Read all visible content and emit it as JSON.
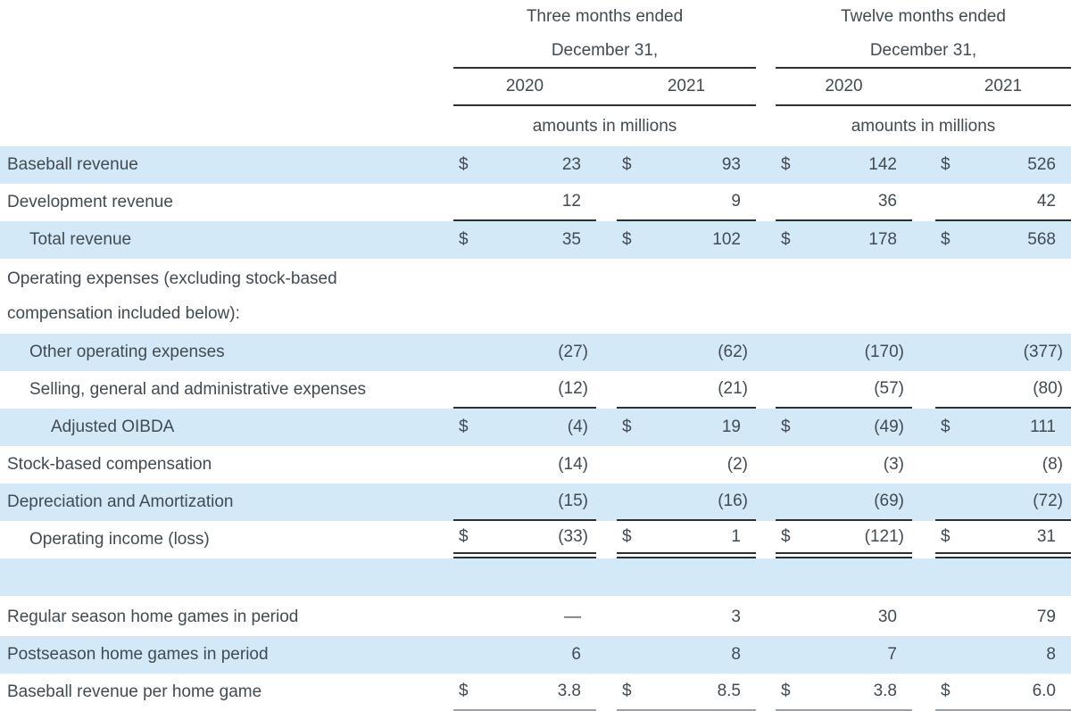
{
  "table": {
    "currency_symbol": "$",
    "col_groups": [
      {
        "line1": "Three months ended",
        "line2": "December 31,",
        "years": [
          "2020",
          "2021"
        ],
        "units": "amounts in millions"
      },
      {
        "line1": "Twelve months ended",
        "line2": "December 31,",
        "years": [
          "2020",
          "2021"
        ],
        "units": "amounts in millions"
      }
    ],
    "rows": [
      {
        "label": "Baseball revenue",
        "indent": 0,
        "bg": "blue",
        "dollar": true,
        "values": [
          "23",
          "93",
          "142",
          "526"
        ]
      },
      {
        "label": "Development revenue",
        "indent": 0,
        "bg": "white",
        "dollar": false,
        "values": [
          "12",
          "9",
          "36",
          "42"
        ],
        "underline": "single"
      },
      {
        "label": "Total revenue",
        "indent": 1,
        "bg": "blue",
        "dollar": true,
        "values": [
          "35",
          "102",
          "178",
          "568"
        ]
      },
      {
        "label": "Operating expenses (excluding stock-based compensation included below):",
        "indent": 0,
        "bg": "white",
        "dollar": false,
        "values": [
          "",
          "",
          "",
          ""
        ],
        "height": 84,
        "wrap": true
      },
      {
        "label": "Other operating expenses",
        "indent": 1,
        "bg": "blue",
        "dollar": false,
        "values": [
          "(27)",
          "(62)",
          "(170)",
          "(377)"
        ]
      },
      {
        "label": "Selling, general and administrative expenses",
        "indent": 1,
        "bg": "white",
        "dollar": false,
        "values": [
          "(12)",
          "(21)",
          "(57)",
          "(80)"
        ],
        "underline": "single"
      },
      {
        "label": "Adjusted OIBDA",
        "indent": 2,
        "bg": "blue",
        "dollar": true,
        "values": [
          "(4)",
          "19",
          "(49)",
          "111"
        ]
      },
      {
        "label": "Stock-based compensation",
        "indent": 0,
        "bg": "white",
        "dollar": false,
        "values": [
          "(14)",
          "(2)",
          "(3)",
          "(8)"
        ]
      },
      {
        "label": "Depreciation and Amortization",
        "indent": 0,
        "bg": "blue",
        "dollar": false,
        "values": [
          "(15)",
          "(16)",
          "(69)",
          "(72)"
        ],
        "underline": "single"
      },
      {
        "label": "Operating income (loss)",
        "indent": 1,
        "bg": "white",
        "dollar": true,
        "values": [
          "(33)",
          "1",
          "(121)",
          "31"
        ],
        "underline": "double"
      },
      {
        "label": "",
        "indent": 0,
        "bg": "blue",
        "dollar": false,
        "values": [
          "",
          "",
          "",
          ""
        ]
      },
      {
        "label": "",
        "indent": 0,
        "bg": "white",
        "dollar": false,
        "values": [],
        "height": 3,
        "spacer": true
      },
      {
        "label": "Regular season home games in period",
        "indent": 0,
        "bg": "white",
        "dollar": false,
        "values": [
          "—",
          "3",
          "30",
          "79"
        ]
      },
      {
        "label": "Postseason home games in period",
        "indent": 0,
        "bg": "blue",
        "dollar": false,
        "values": [
          "6",
          "8",
          "7",
          "8"
        ]
      },
      {
        "label": "Baseball revenue per home game",
        "indent": 0,
        "bg": "white",
        "dollar": true,
        "values": [
          "3.8",
          "8.5",
          "3.8",
          "6.0"
        ],
        "underline": "gray"
      }
    ],
    "colors": {
      "row_highlight": "#d3e9f8",
      "text": "#424a52",
      "rule_dark": "#2b3035",
      "rule_gray": "#98a0a8"
    }
  }
}
